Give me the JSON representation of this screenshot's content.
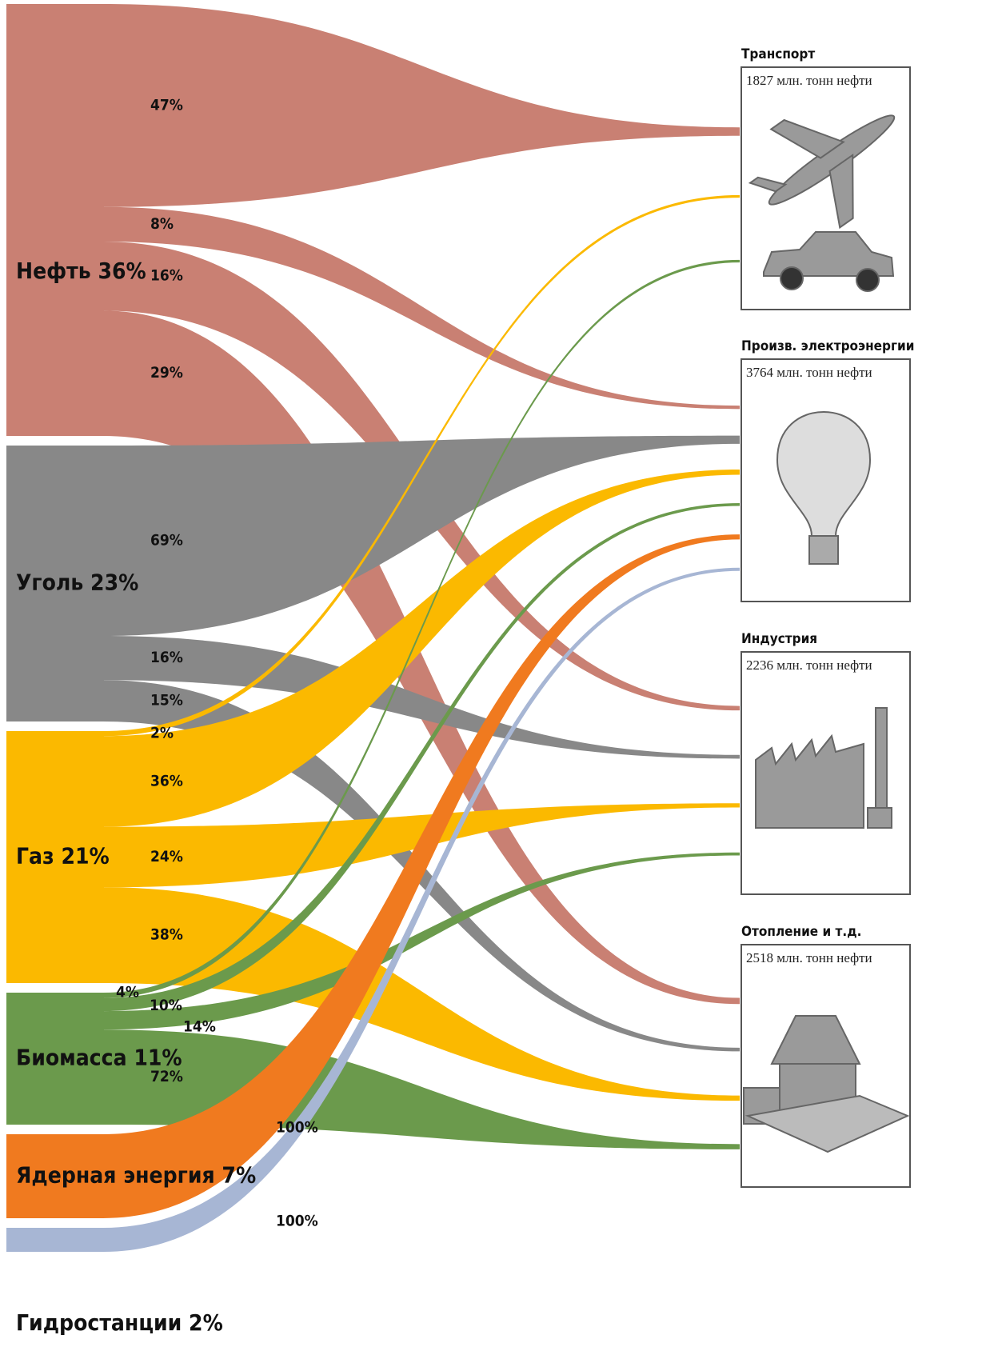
{
  "chart_data": {
    "type": "sankey",
    "sources": [
      {
        "label": "Нефть 36%",
        "value": 36,
        "color": "#c98073"
      },
      {
        "label": "Уголь 23%",
        "value": 23,
        "color": "#888888"
      },
      {
        "label": "Газ 21%",
        "value": 21,
        "color": "#fbb900"
      },
      {
        "label": "Биомасса 11%",
        "value": 11,
        "color": "#6b9a4c"
      },
      {
        "label": "Ядерная энергия 7%",
        "value": 7,
        "color": "#f07a1f"
      },
      {
        "label": "Гидростанции 2%",
        "value": 2,
        "color": "#a7b6d4"
      }
    ],
    "targets": [
      {
        "name": "Транспорт",
        "note": "1827 млн. тонн нефти"
      },
      {
        "name": "Произв. электроэнергии",
        "note": "3764 млн. тонн нефти"
      },
      {
        "name": "Индустрия",
        "note": "2236 млн. тонн нефти"
      },
      {
        "name": "Отопление и т.д.",
        "note": "2518 млн. тонн нефти"
      }
    ],
    "flows": [
      {
        "source": 0,
        "target": 0,
        "value": 47,
        "label": "47%"
      },
      {
        "source": 0,
        "target": 1,
        "value": 8,
        "label": "8%"
      },
      {
        "source": 0,
        "target": 2,
        "value": 16,
        "label": "16%"
      },
      {
        "source": 0,
        "target": 3,
        "value": 29,
        "label": "29%"
      },
      {
        "source": 1,
        "target": 1,
        "value": 69,
        "label": "69%"
      },
      {
        "source": 1,
        "target": 2,
        "value": 16,
        "label": "16%"
      },
      {
        "source": 1,
        "target": 3,
        "value": 15,
        "label": "15%"
      },
      {
        "source": 2,
        "target": 0,
        "value": 2,
        "label": "2%"
      },
      {
        "source": 2,
        "target": 1,
        "value": 36,
        "label": "36%"
      },
      {
        "source": 2,
        "target": 2,
        "value": 24,
        "label": "24%"
      },
      {
        "source": 2,
        "target": 3,
        "value": 38,
        "label": "38%"
      },
      {
        "source": 3,
        "target": 0,
        "value": 4,
        "label": "4%"
      },
      {
        "source": 3,
        "target": 1,
        "value": 10,
        "label": "10%"
      },
      {
        "source": 3,
        "target": 2,
        "value": 14,
        "label": "14%"
      },
      {
        "source": 3,
        "target": 3,
        "value": 72,
        "label": "72%"
      },
      {
        "source": 4,
        "target": 1,
        "value": 100,
        "label": "100%"
      },
      {
        "source": 5,
        "target": 1,
        "value": 100,
        "label": "100%"
      }
    ]
  }
}
